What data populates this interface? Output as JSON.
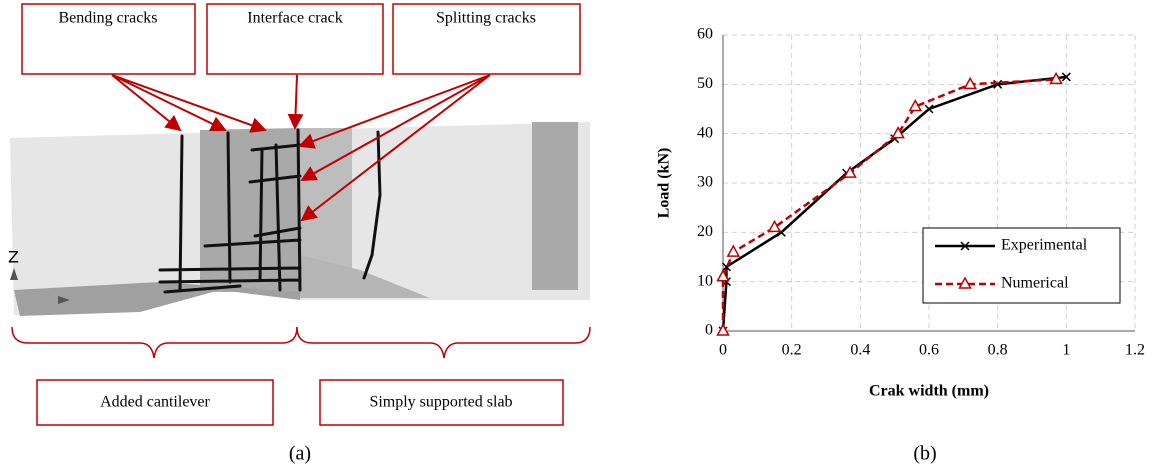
{
  "panel_a": {
    "callouts": [
      "Bending cracks",
      "Interface crack",
      "Splitting cracks"
    ],
    "axis_label": "Z",
    "regions": [
      "Added cantilever",
      "Simply supported slab"
    ]
  },
  "captions": [
    "(a)",
    "(b)"
  ],
  "chart_data": {
    "type": "line",
    "xlabel": "Crak width (mm)",
    "ylabel": "Load (kN)",
    "xlim": [
      0,
      1.2
    ],
    "xticks": [
      0,
      0.2,
      0.4,
      0.6,
      0.8,
      1,
      1.2
    ],
    "ylim": [
      0,
      60
    ],
    "yticks": [
      0,
      10,
      20,
      30,
      40,
      50,
      60
    ],
    "grid": true,
    "legend": "lower right",
    "series": [
      {
        "name": "Experimental",
        "color": "#000000",
        "dash": false,
        "marker": "x",
        "x": [
          0,
          0.01,
          0.01,
          0.17,
          0.36,
          0.5,
          0.6,
          0.8,
          1.0
        ],
        "values": [
          0,
          10,
          13,
          20,
          32,
          39,
          45,
          50,
          51.5
        ]
      },
      {
        "name": "Numerical",
        "color": "#c00000",
        "dash": true,
        "marker": "triangle",
        "x": [
          0,
          0,
          0.03,
          0.15,
          0.37,
          0.51,
          0.56,
          0.72,
          0.97
        ],
        "values": [
          0,
          11,
          16,
          21,
          32,
          40,
          45.5,
          50,
          51
        ]
      }
    ]
  }
}
